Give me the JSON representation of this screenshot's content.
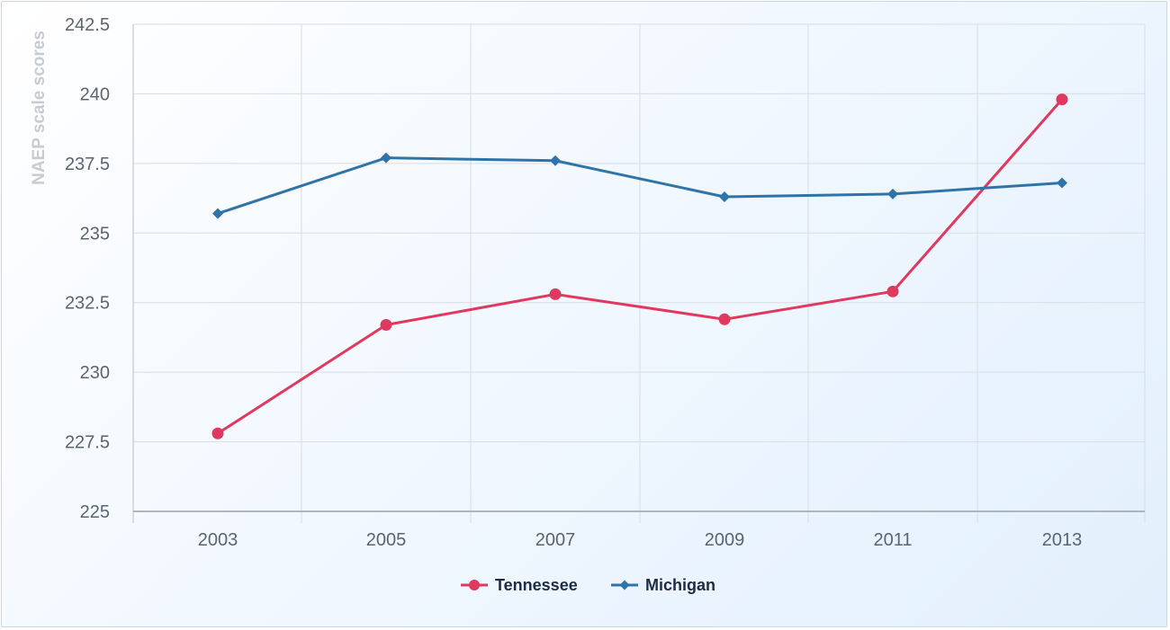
{
  "chart_data": {
    "type": "line",
    "ylabel": "NAEP scale scores",
    "x": [
      "2003",
      "2005",
      "2007",
      "2009",
      "2011",
      "2013"
    ],
    "ylim": [
      225,
      242.5
    ],
    "yticks": [
      "225",
      "227.5",
      "230",
      "232.5",
      "235",
      "237.5",
      "240",
      "242.5"
    ],
    "grid": true,
    "legend_position": "bottom-center",
    "series": [
      {
        "name": "Tennessee",
        "color": "#e0395f",
        "marker": "circle",
        "values": [
          227.8,
          231.7,
          232.8,
          231.9,
          232.9,
          239.8
        ]
      },
      {
        "name": "Michigan",
        "color": "#2e74a8",
        "marker": "diamond",
        "values": [
          235.7,
          237.7,
          237.6,
          236.3,
          236.4,
          236.8
        ]
      }
    ]
  }
}
